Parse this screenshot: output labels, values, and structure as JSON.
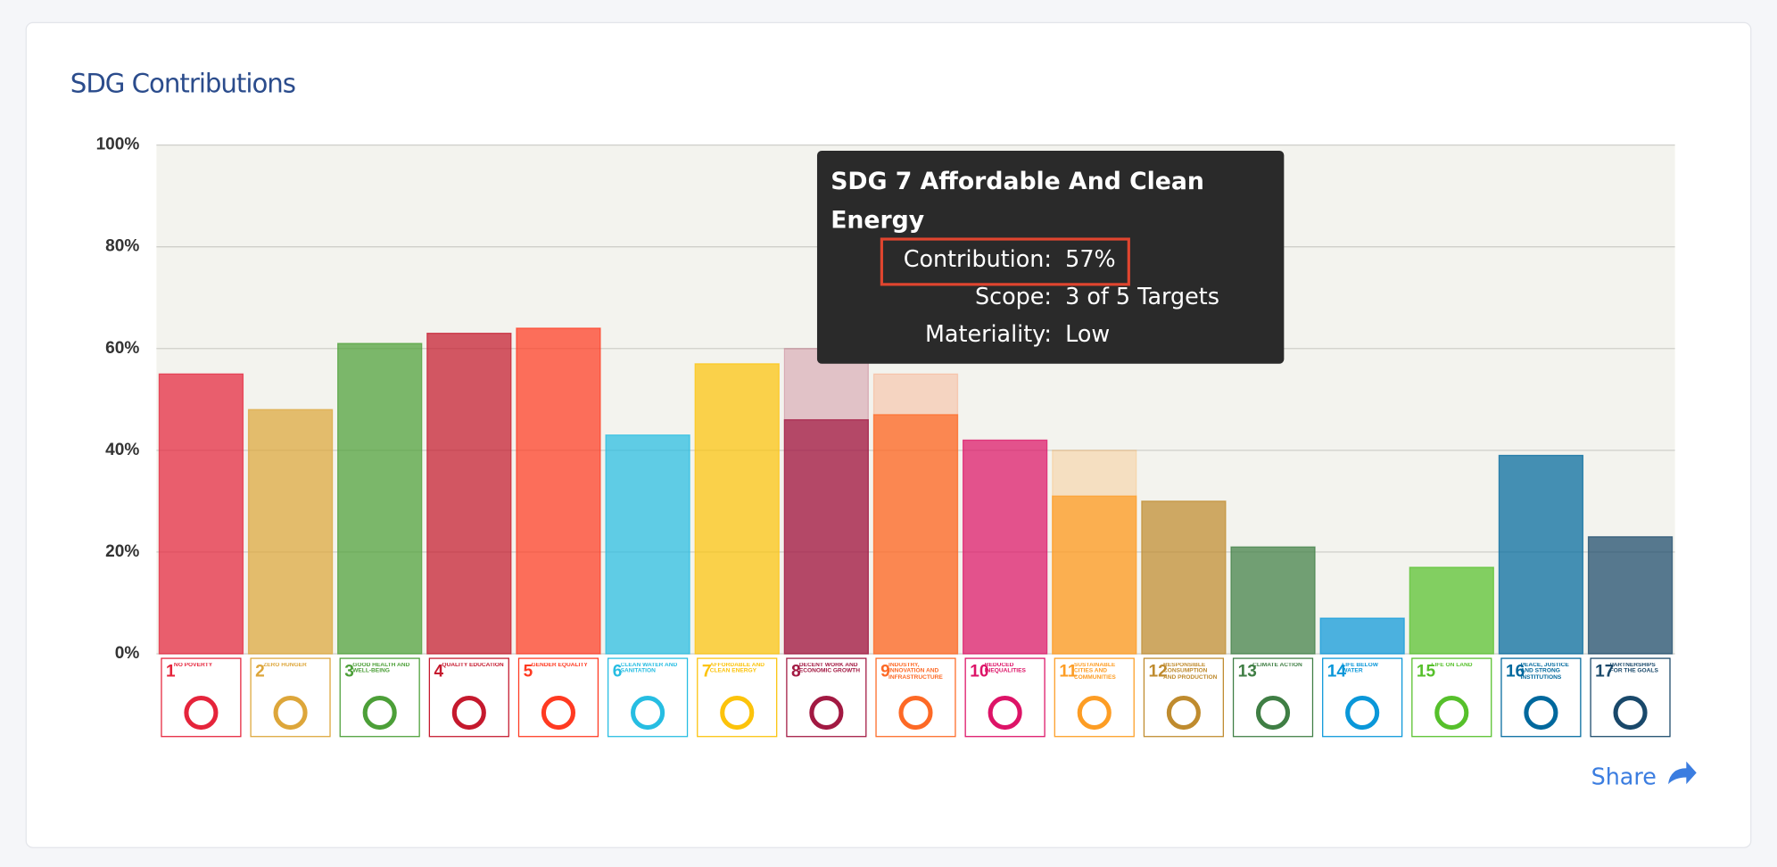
{
  "header": {
    "title": "SDG Contributions"
  },
  "chart_data": {
    "type": "bar",
    "goal_numbers": [
      1,
      2,
      3,
      4,
      5,
      6,
      7,
      8,
      9,
      10,
      11,
      12,
      13,
      14,
      15,
      16,
      17
    ],
    "categories": [
      "NO POVERTY",
      "ZERO HUNGER",
      "GOOD HEALTH AND WELL-BEING",
      "QUALITY EDUCATION",
      "GENDER EQUALITY",
      "CLEAN WATER AND SANITATION",
      "AFFORDABLE AND CLEAN ENERGY",
      "DECENT WORK AND ECONOMIC GROWTH",
      "INDUSTRY, INNOVATION AND INFRASTRUCTURE",
      "REDUCED INEQUALITIES",
      "SUSTAINABLE CITIES AND COMMUNITIES",
      "RESPONSIBLE CONSUMPTION AND PRODUCTION",
      "CLIMATE ACTION",
      "LIFE BELOW WATER",
      "LIFE ON LAND",
      "PEACE, JUSTICE AND STRONG INSTITUTIONS",
      "PARTNERSHIPS FOR THE GOALS"
    ],
    "colors": [
      "#e5243b",
      "#dda63a",
      "#4c9f38",
      "#c5192d",
      "#ff3a21",
      "#26bde2",
      "#fcc30b",
      "#a21942",
      "#fd6925",
      "#dd1367",
      "#fd9d24",
      "#bf8b2e",
      "#3f7e44",
      "#0a97d9",
      "#56c02b",
      "#00689d",
      "#19486a"
    ],
    "series": [
      {
        "values": [
          null,
          null,
          null,
          null,
          null,
          null,
          null,
          60,
          55,
          null,
          40,
          null,
          null,
          null,
          null,
          null,
          null
        ],
        "opacity": 0.22
      },
      {
        "values": [
          55,
          48,
          61,
          63,
          64,
          43,
          57,
          46,
          47,
          42,
          31,
          30,
          21,
          7,
          17,
          39,
          23
        ],
        "opacity": 0.72
      }
    ],
    "ylim": [
      0,
      100
    ],
    "yticks": [
      {
        "value": 0,
        "label": "0%"
      },
      {
        "value": 20,
        "label": "20%"
      },
      {
        "value": 40,
        "label": "40%"
      },
      {
        "value": 60,
        "label": "60%"
      },
      {
        "value": 80,
        "label": "80%"
      },
      {
        "value": 100,
        "label": "100%"
      }
    ],
    "grid": true
  },
  "tooltip": {
    "title": "SDG 7 Affordable And Clean Energy",
    "rows": [
      [
        "Contribution:",
        "57%"
      ],
      [
        "Scope:",
        "3 of 5 Targets"
      ],
      [
        "Materiality:",
        "Low"
      ]
    ]
  },
  "share": "Share"
}
